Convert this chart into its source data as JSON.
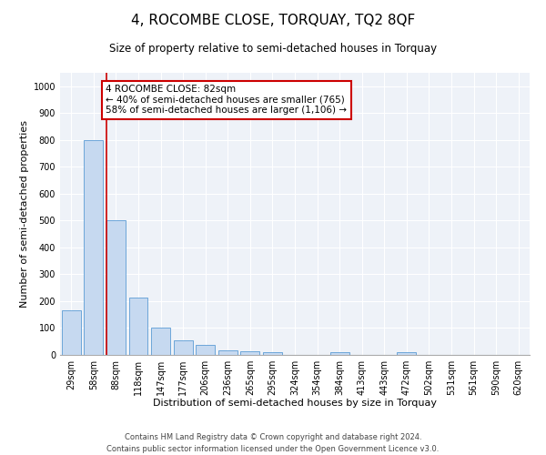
{
  "title": "4, ROCOMBE CLOSE, TORQUAY, TQ2 8QF",
  "subtitle": "Size of property relative to semi-detached houses in Torquay",
  "xlabel": "Distribution of semi-detached houses by size in Torquay",
  "ylabel": "Number of semi-detached properties",
  "bins": [
    "29sqm",
    "58sqm",
    "88sqm",
    "118sqm",
    "147sqm",
    "177sqm",
    "206sqm",
    "236sqm",
    "265sqm",
    "295sqm",
    "324sqm",
    "354sqm",
    "384sqm",
    "413sqm",
    "443sqm",
    "472sqm",
    "502sqm",
    "531sqm",
    "561sqm",
    "590sqm",
    "620sqm"
  ],
  "values": [
    165,
    800,
    500,
    215,
    100,
    55,
    37,
    18,
    15,
    10,
    0,
    0,
    10,
    0,
    0,
    10,
    0,
    0,
    0,
    0,
    0
  ],
  "bar_color": "#c6d9f0",
  "bar_edge_color": "#5b9bd5",
  "vline_x_index": 2,
  "vline_color": "#cc0000",
  "annotation_line1": "4 ROCOMBE CLOSE: 82sqm",
  "annotation_line2": "← 40% of semi-detached houses are smaller (765)",
  "annotation_line3": "58% of semi-detached houses are larger (1,106) →",
  "annotation_box_color": "#cc0000",
  "ylim": [
    0,
    1050
  ],
  "yticks": [
    0,
    100,
    200,
    300,
    400,
    500,
    600,
    700,
    800,
    900,
    1000
  ],
  "background_color": "#eef2f8",
  "footer_line1": "Contains HM Land Registry data © Crown copyright and database right 2024.",
  "footer_line2": "Contains public sector information licensed under the Open Government Licence v3.0.",
  "title_fontsize": 11,
  "subtitle_fontsize": 8.5,
  "xlabel_fontsize": 8,
  "ylabel_fontsize": 8,
  "tick_fontsize": 7,
  "annotation_fontsize": 7.5,
  "footer_fontsize": 6
}
